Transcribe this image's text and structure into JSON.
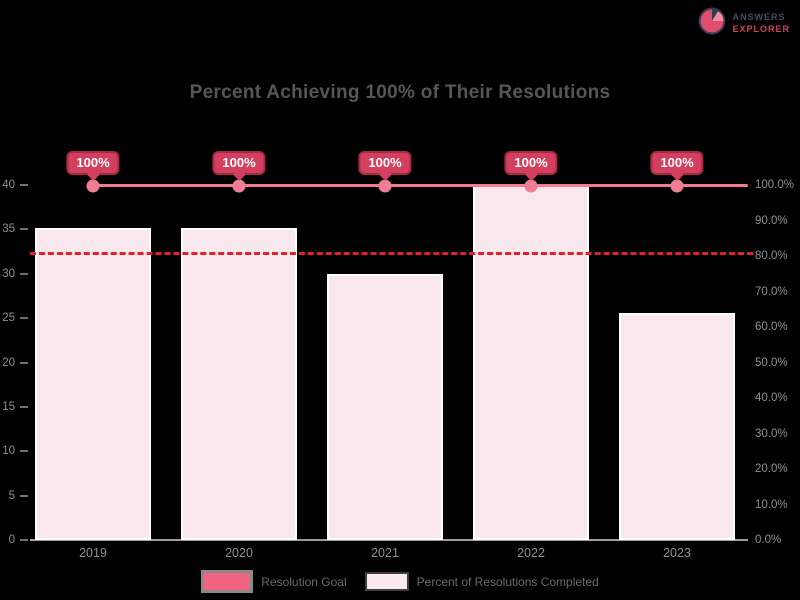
{
  "page": {
    "background": "#000000"
  },
  "logo": {
    "line1": "ANSWERS",
    "line2": "EXPLORER"
  },
  "chart_data": {
    "type": "bar",
    "title": "Percent Achieving 100% of Their Resolutions",
    "categories": [
      "2019",
      "2020",
      "2021",
      "2022",
      "2023"
    ],
    "series": [
      {
        "name": "Resolution Goal",
        "type": "line",
        "values": [
          100,
          100,
          100,
          100,
          100
        ],
        "point_labels": [
          "100%",
          "100%",
          "100%",
          "100%",
          "100%"
        ],
        "color": "#f27b8e"
      },
      {
        "name": "Percent of Resolutions Completed",
        "type": "bar",
        "values": [
          88,
          88,
          75,
          100,
          64
        ],
        "color": "#f9e7ee"
      }
    ],
    "threshold_line": {
      "value": 80,
      "style": "dashed",
      "color": "#e81f26"
    },
    "right_axis": {
      "min": 0,
      "max": 100,
      "labels": [
        "100.0%",
        "90.0%",
        "80.0%",
        "70.0%",
        "60.0%",
        "50.0%",
        "40.0%",
        "30.0%",
        "20.0%",
        "10.0%",
        "0.0%"
      ]
    },
    "left_axis": {
      "labels": [
        "40",
        "35",
        "30",
        "25",
        "20",
        "15",
        "10",
        "5",
        "0"
      ]
    },
    "legend_position": "bottom",
    "grid": "off"
  },
  "colors": {
    "background": "#000000",
    "bar_fill": "#f9e7ee",
    "bar_border": "#ffffff",
    "goal_line": "#f27b8e",
    "marker": "#ee7e97",
    "badge_bg": "#d33f5f",
    "badge_border": "#a82944",
    "badge_text": "#ffffff",
    "dashed_line": "#e81f26",
    "axis_text": "#8f8f8f",
    "title_text": "#565656",
    "legend_text": "#6a6a6a",
    "logo_navy": "#454b63",
    "logo_red": "#d5415e"
  }
}
